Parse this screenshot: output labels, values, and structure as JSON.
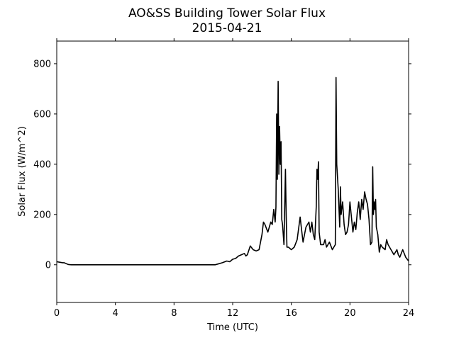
{
  "chart_data": {
    "type": "line",
    "title": "AO&SS Building Tower Solar Flux",
    "subtitle": "2015-04-21",
    "xlabel": "Time (UTC)",
    "ylabel": "Solar Flux (W/m^2)",
    "xlim": [
      0,
      24
    ],
    "ylim": [
      -150,
      890
    ],
    "xticks": [
      0,
      4,
      8,
      12,
      16,
      20,
      24
    ],
    "yticks": [
      0,
      200,
      400,
      600,
      800
    ],
    "grid": false,
    "legend": "none",
    "line_color": "#000000",
    "series": [
      {
        "x": [
          0.0,
          0.2,
          0.4,
          0.5,
          0.7,
          0.8,
          1.0,
          2.0,
          4.0,
          6.0,
          8.0,
          10.0,
          10.8,
          11.0,
          11.3,
          11.6,
          11.8,
          12.0,
          12.2,
          12.4,
          12.6,
          12.8,
          12.9,
          13.0,
          13.2,
          13.4,
          13.6,
          13.8,
          14.0,
          14.1,
          14.2,
          14.4,
          14.6,
          14.7,
          14.8,
          14.9,
          14.95,
          15.0,
          15.05,
          15.1,
          15.15,
          15.2,
          15.25,
          15.3,
          15.35,
          15.4,
          15.5,
          15.6,
          15.65,
          15.7,
          15.8,
          16.0,
          16.2,
          16.4,
          16.6,
          16.7,
          16.8,
          17.0,
          17.2,
          17.3,
          17.4,
          17.5,
          17.6,
          17.7,
          17.75,
          17.8,
          17.85,
          17.9,
          18.0,
          18.2,
          18.3,
          18.4,
          18.5,
          18.6,
          18.8,
          19.0,
          19.05,
          19.1,
          19.2,
          19.3,
          19.35,
          19.4,
          19.5,
          19.6,
          19.7,
          19.8,
          19.9,
          20.0,
          20.2,
          20.3,
          20.4,
          20.5,
          20.6,
          20.7,
          20.8,
          20.9,
          21.0,
          21.1,
          21.2,
          21.3,
          21.4,
          21.5,
          21.55,
          21.6,
          21.65,
          21.7,
          21.75,
          21.8,
          21.9,
          22.0,
          22.1,
          22.2,
          22.4,
          22.5,
          22.6,
          22.8,
          23.0,
          23.2,
          23.3,
          23.4,
          23.6,
          23.8,
          24.0
        ],
        "y": [
          12,
          10,
          8,
          8,
          3,
          1,
          0,
          0,
          0,
          0,
          0,
          0,
          0,
          3,
          8,
          15,
          12,
          22,
          25,
          35,
          40,
          45,
          35,
          40,
          75,
          60,
          55,
          60,
          120,
          170,
          160,
          130,
          170,
          160,
          220,
          170,
          230,
          600,
          340,
          730,
          360,
          550,
          400,
          490,
          180,
          160,
          80,
          380,
          200,
          70,
          70,
          60,
          70,
          100,
          190,
          140,
          90,
          150,
          170,
          130,
          170,
          120,
          100,
          230,
          380,
          340,
          410,
          130,
          80,
          80,
          100,
          70,
          80,
          90,
          60,
          80,
          745,
          400,
          300,
          150,
          310,
          200,
          250,
          160,
          120,
          130,
          160,
          250,
          130,
          170,
          140,
          210,
          250,
          180,
          260,
          220,
          290,
          260,
          240,
          180,
          80,
          90,
          390,
          200,
          250,
          220,
          260,
          150,
          120,
          50,
          80,
          70,
          60,
          100,
          80,
          60,
          40,
          60,
          40,
          30,
          60,
          30,
          15
        ]
      }
    ]
  }
}
